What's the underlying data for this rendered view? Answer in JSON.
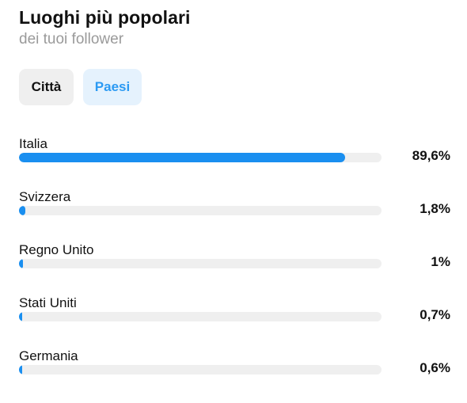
{
  "header": {
    "title": "Luoghi più popolari",
    "subtitle": "dei tuoi follower"
  },
  "tabs": [
    {
      "label": "Città",
      "selected": false
    },
    {
      "label": "Paesi",
      "selected": true
    }
  ],
  "locations": [
    {
      "name": "Italia",
      "percent_label": "89,6%",
      "percent": 89.6
    },
    {
      "name": "Svizzera",
      "percent_label": "1,8%",
      "percent": 1.8
    },
    {
      "name": "Regno Unito",
      "percent_label": "1%",
      "percent": 1.0
    },
    {
      "name": "Stati Uniti",
      "percent_label": "0,7%",
      "percent": 0.7
    },
    {
      "name": "Germania",
      "percent_label": "0,6%",
      "percent": 0.6
    }
  ],
  "colors": {
    "accent": "#1a8ff0",
    "track": "#efefef",
    "selected_tab_bg": "#e5f2fd",
    "selected_tab_text": "#2b9af3"
  }
}
